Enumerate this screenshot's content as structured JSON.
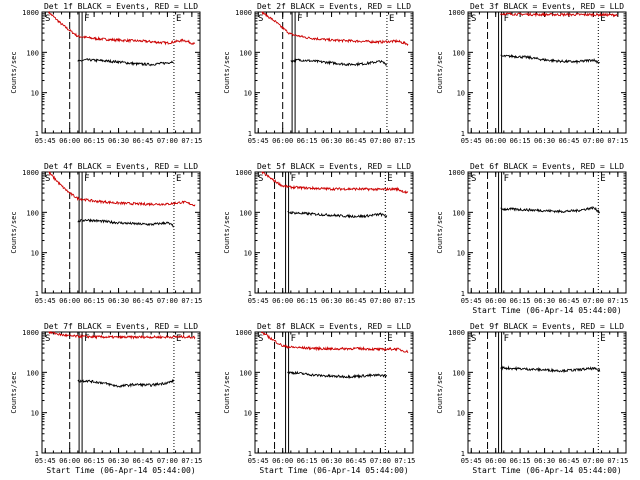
{
  "colors": {
    "events": "#000000",
    "lld": "#cc0000",
    "axis": "#000000",
    "background": "#ffffff"
  },
  "chart_data": [
    {
      "type": "line",
      "title": "Det 1f BLACK = Events, RED = LLD",
      "ylabel": "Counts/sec",
      "xlabel": "",
      "ylim": [
        1,
        1000
      ],
      "yscale": "log",
      "ytick_labels": [
        "1",
        "10",
        "100",
        "1000"
      ],
      "xtick_labels": [
        "05:45",
        "06:00",
        "06:15",
        "06:30",
        "06:45",
        "07:00",
        "07:15"
      ],
      "markers": {
        "S": "06:00",
        "F": "06:07",
        "E": "07:04"
      },
      "series": [
        {
          "key": "events",
          "x": [
            "06:05",
            "06:10",
            "06:20",
            "06:30",
            "06:40",
            "06:50",
            "07:00",
            "07:04"
          ],
          "values": [
            60,
            65,
            62,
            58,
            52,
            50,
            55,
            60
          ]
        },
        {
          "key": "lld",
          "x": [
            "05:47",
            "05:55",
            "06:00",
            "06:05",
            "06:15",
            "06:30",
            "06:45",
            "07:00",
            "07:10",
            "07:17"
          ],
          "values": [
            1000,
            500,
            350,
            250,
            220,
            200,
            190,
            170,
            200,
            160
          ]
        }
      ]
    },
    {
      "type": "line",
      "title": "Det 2f BLACK = Events, RED = LLD",
      "ylabel": "Counts/sec",
      "xlabel": "",
      "ylim": [
        1,
        1000
      ],
      "yscale": "log",
      "ytick_labels": [
        "1",
        "10",
        "100",
        "1000"
      ],
      "xtick_labels": [
        "05:45",
        "06:00",
        "06:15",
        "06:30",
        "06:45",
        "07:00",
        "07:15"
      ],
      "markers": {
        "S": "06:00",
        "F": "06:07",
        "E": "07:04"
      },
      "series": [
        {
          "key": "events",
          "x": [
            "06:05",
            "06:10",
            "06:20",
            "06:30",
            "06:40",
            "06:50",
            "07:00",
            "07:04"
          ],
          "values": [
            60,
            65,
            60,
            55,
            50,
            52,
            60,
            50
          ]
        },
        {
          "key": "lld",
          "x": [
            "05:47",
            "05:55",
            "06:00",
            "06:05",
            "06:15",
            "06:30",
            "06:45",
            "07:00",
            "07:10",
            "07:17"
          ],
          "values": [
            1000,
            600,
            400,
            280,
            230,
            200,
            190,
            180,
            190,
            160
          ]
        }
      ]
    },
    {
      "type": "line",
      "title": "Det 3f BLACK = Events, RED = LLD",
      "ylabel": "Counts/sec",
      "xlabel": "",
      "ylim": [
        1,
        1000
      ],
      "yscale": "log",
      "ytick_labels": [
        "1",
        "10",
        "100",
        "1000"
      ],
      "xtick_labels": [
        "05:45",
        "06:00",
        "06:15",
        "06:30",
        "06:45",
        "07:00",
        "07:15"
      ],
      "markers": {
        "S": "05:55",
        "F": "06:03",
        "E": "07:03"
      },
      "series": [
        {
          "key": "events",
          "x": [
            "06:03",
            "06:10",
            "06:20",
            "06:30",
            "06:40",
            "06:50",
            "07:00",
            "07:04"
          ],
          "values": [
            80,
            80,
            75,
            65,
            60,
            58,
            65,
            55
          ]
        },
        {
          "key": "lld",
          "x": [
            "06:03",
            "06:15",
            "06:30",
            "06:45",
            "07:00",
            "07:15"
          ],
          "values": [
            900,
            880,
            860,
            860,
            860,
            840
          ]
        }
      ]
    },
    {
      "type": "line",
      "title": "Det 4f BLACK = Events, RED = LLD",
      "ylabel": "Counts/sec",
      "xlabel": "",
      "ylim": [
        1,
        1000
      ],
      "yscale": "log",
      "ytick_labels": [
        "1",
        "10",
        "100",
        "1000"
      ],
      "xtick_labels": [
        "05:45",
        "06:00",
        "06:15",
        "06:30",
        "06:45",
        "07:00",
        "07:15"
      ],
      "markers": {
        "S": "06:00",
        "F": "06:07",
        "E": "07:04"
      },
      "series": [
        {
          "key": "events",
          "x": [
            "06:05",
            "06:10",
            "06:20",
            "06:30",
            "06:40",
            "06:50",
            "07:00",
            "07:04"
          ],
          "values": [
            60,
            65,
            60,
            55,
            52,
            50,
            55,
            45
          ]
        },
        {
          "key": "lld",
          "x": [
            "05:47",
            "05:55",
            "06:00",
            "06:05",
            "06:15",
            "06:30",
            "06:45",
            "07:00",
            "07:10",
            "07:17"
          ],
          "values": [
            1000,
            450,
            300,
            220,
            190,
            170,
            160,
            160,
            180,
            150
          ]
        }
      ]
    },
    {
      "type": "line",
      "title": "Det 5f BLACK = Events, RED = LLD",
      "ylabel": "Counts/sec",
      "xlabel": "",
      "ylim": [
        1,
        1000
      ],
      "yscale": "log",
      "ytick_labels": [
        "1",
        "10",
        "100",
        "1000"
      ],
      "xtick_labels": [
        "05:45",
        "06:00",
        "06:15",
        "06:30",
        "06:45",
        "07:00",
        "07:15"
      ],
      "markers": {
        "S": "05:55",
        "F": "06:03",
        "E": "07:03"
      },
      "series": [
        {
          "key": "events",
          "x": [
            "06:03",
            "06:10",
            "06:20",
            "06:30",
            "06:40",
            "06:50",
            "07:00",
            "07:04"
          ],
          "values": [
            100,
            95,
            90,
            85,
            80,
            80,
            90,
            80
          ]
        },
        {
          "key": "lld",
          "x": [
            "05:47",
            "05:55",
            "06:00",
            "06:05",
            "06:15",
            "06:30",
            "06:45",
            "07:00",
            "07:10",
            "07:17"
          ],
          "values": [
            1000,
            600,
            450,
            420,
            400,
            380,
            380,
            370,
            380,
            300
          ]
        }
      ]
    },
    {
      "type": "line",
      "title": "Det 6f BLACK = Events, RED = LLD",
      "ylabel": "Counts/sec",
      "xlabel": "Start Time (06-Apr-14 05:44:00)",
      "ylim": [
        1,
        1000
      ],
      "yscale": "log",
      "ytick_labels": [
        "1",
        "10",
        "100",
        "1000"
      ],
      "xtick_labels": [
        "05:45",
        "06:00",
        "06:15",
        "06:30",
        "06:45",
        "07:00",
        "07:15"
      ],
      "markers": {
        "S": "05:55",
        "F": "06:03",
        "E": "07:03"
      },
      "series": [
        {
          "key": "events",
          "x": [
            "06:03",
            "06:10",
            "06:20",
            "06:30",
            "06:40",
            "06:50",
            "07:00",
            "07:04"
          ],
          "values": [
            120,
            120,
            115,
            110,
            105,
            110,
            130,
            100
          ]
        }
      ]
    },
    {
      "type": "line",
      "title": "Det 7f BLACK = Events, RED = LLD",
      "ylabel": "Counts/sec",
      "xlabel": "Start Time (06-Apr-14 05:44:00)",
      "ylim": [
        1,
        1000
      ],
      "yscale": "log",
      "ytick_labels": [
        "1",
        "10",
        "100",
        "1000"
      ],
      "xtick_labels": [
        "05:45",
        "06:00",
        "06:15",
        "06:30",
        "06:45",
        "07:00",
        "07:15"
      ],
      "markers": {
        "S": "06:00",
        "F": "06:07",
        "E": "07:04"
      },
      "series": [
        {
          "key": "events",
          "x": [
            "06:05",
            "06:10",
            "06:20",
            "06:30",
            "06:40",
            "06:50",
            "07:00",
            "07:04"
          ],
          "values": [
            60,
            62,
            55,
            45,
            50,
            48,
            55,
            62
          ]
        },
        {
          "key": "lld",
          "x": [
            "05:47",
            "05:55",
            "06:00",
            "06:05",
            "06:15",
            "06:30",
            "06:45",
            "07:00",
            "07:10",
            "07:17"
          ],
          "values": [
            1000,
            850,
            800,
            780,
            760,
            740,
            750,
            750,
            760,
            740
          ]
        }
      ]
    },
    {
      "type": "line",
      "title": "Det 8f BLACK = Events, RED = LLD",
      "ylabel": "Counts/sec",
      "xlabel": "Start Time (06-Apr-14 05:44:00)",
      "ylim": [
        1,
        1000
      ],
      "yscale": "log",
      "ytick_labels": [
        "1",
        "10",
        "100",
        "1000"
      ],
      "xtick_labels": [
        "05:45",
        "06:00",
        "06:15",
        "06:30",
        "06:45",
        "07:00",
        "07:15"
      ],
      "markers": {
        "S": "05:55",
        "F": "06:03",
        "E": "07:03"
      },
      "series": [
        {
          "key": "events",
          "x": [
            "06:03",
            "06:10",
            "06:20",
            "06:30",
            "06:40",
            "06:50",
            "07:00",
            "07:04"
          ],
          "values": [
            100,
            95,
            85,
            80,
            78,
            82,
            85,
            80
          ]
        },
        {
          "key": "lld",
          "x": [
            "05:47",
            "05:55",
            "06:00",
            "06:05",
            "06:15",
            "06:30",
            "06:45",
            "07:00",
            "07:10",
            "07:17"
          ],
          "values": [
            1000,
            600,
            450,
            420,
            400,
            380,
            390,
            370,
            380,
            320
          ]
        }
      ]
    },
    {
      "type": "line",
      "title": "Det 9f BLACK = Events, RED = LLD",
      "ylabel": "Counts/sec",
      "xlabel": "Start Time (06-Apr-14 05:44:00)",
      "ylim": [
        1,
        1000
      ],
      "yscale": "log",
      "ytick_labels": [
        "1",
        "10",
        "100",
        "1000"
      ],
      "xtick_labels": [
        "05:45",
        "06:00",
        "06:15",
        "06:30",
        "06:45",
        "07:00",
        "07:15"
      ],
      "markers": {
        "S": "05:55",
        "F": "06:03",
        "E": "07:03"
      },
      "series": [
        {
          "key": "events",
          "x": [
            "06:03",
            "06:10",
            "06:20",
            "06:30",
            "06:40",
            "06:50",
            "07:00",
            "07:04"
          ],
          "values": [
            130,
            125,
            120,
            115,
            110,
            115,
            125,
            110
          ]
        }
      ]
    }
  ]
}
